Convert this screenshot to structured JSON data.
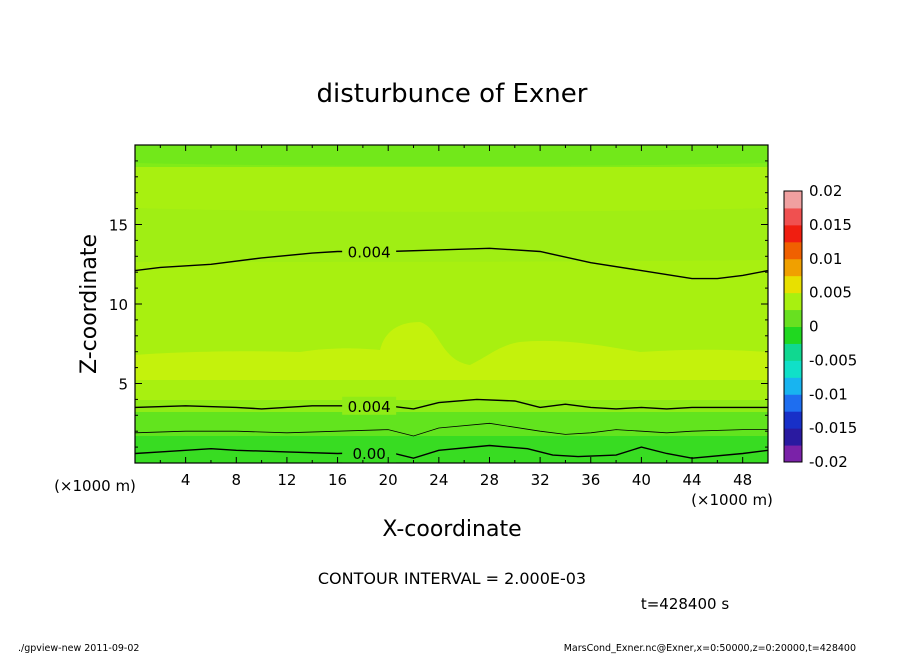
{
  "chart_data": {
    "type": "heatmap",
    "title": "disturbunce of Exner",
    "xlabel": "X-coordinate",
    "ylabel": "Z-coordinate",
    "x_unit": "(×1000 m)",
    "xlim": [
      0,
      50
    ],
    "ylim": [
      0,
      20
    ],
    "x_ticks": [
      "4",
      "8",
      "12",
      "16",
      "20",
      "24",
      "28",
      "32",
      "36",
      "40",
      "44",
      "48"
    ],
    "y_ticks": [
      "5",
      "10",
      "15"
    ],
    "colorbar": {
      "labels": [
        "0.02",
        "0.015",
        "0.01",
        "0.005",
        "0",
        "-0.005",
        "-0.01",
        "-0.015",
        "-0.02"
      ],
      "range": [
        -0.02,
        0.02
      ],
      "colors": [
        "#7a22a8",
        "#2a1aa0",
        "#1830c8",
        "#1e6ef0",
        "#18b4f0",
        "#10e0c8",
        "#10d890",
        "#20d820",
        "#68e020",
        "#a8f010",
        "#e8e000",
        "#f0a000",
        "#f06000",
        "#f01e10",
        "#f05050",
        "#f0a0a0"
      ]
    },
    "contours": [
      {
        "label": "0.004",
        "points": [
          [
            0,
            12.1
          ],
          [
            2,
            12.3
          ],
          [
            6,
            12.5
          ],
          [
            10,
            12.9
          ],
          [
            14,
            13.2
          ],
          [
            16,
            13.3
          ],
          [
            20,
            13.3
          ],
          [
            24,
            13.4
          ],
          [
            28,
            13.5
          ],
          [
            32,
            13.3
          ],
          [
            36,
            12.6
          ],
          [
            40,
            12.1
          ],
          [
            44,
            11.6
          ],
          [
            46,
            11.6
          ],
          [
            48,
            11.8
          ],
          [
            50,
            12.1
          ]
        ]
      },
      {
        "label": "0.004",
        "points": [
          [
            0,
            3.5
          ],
          [
            4,
            3.6
          ],
          [
            8,
            3.5
          ],
          [
            10,
            3.4
          ],
          [
            14,
            3.6
          ],
          [
            18,
            3.6
          ],
          [
            20,
            3.6
          ],
          [
            22,
            3.4
          ],
          [
            24,
            3.8
          ],
          [
            27,
            4.0
          ],
          [
            30,
            3.9
          ],
          [
            32,
            3.5
          ],
          [
            34,
            3.7
          ],
          [
            36,
            3.5
          ],
          [
            38,
            3.4
          ],
          [
            40,
            3.5
          ],
          [
            42,
            3.4
          ],
          [
            44,
            3.5
          ],
          [
            48,
            3.5
          ],
          [
            50,
            3.5
          ]
        ]
      },
      {
        "label": "",
        "points": [
          [
            0,
            1.9
          ],
          [
            4,
            2.0
          ],
          [
            8,
            2.0
          ],
          [
            12,
            1.9
          ],
          [
            16,
            2.0
          ],
          [
            20,
            2.1
          ],
          [
            22,
            1.7
          ],
          [
            24,
            2.2
          ],
          [
            28,
            2.5
          ],
          [
            32,
            2.0
          ],
          [
            34,
            1.8
          ],
          [
            36,
            1.9
          ],
          [
            38,
            2.1
          ],
          [
            40,
            2.0
          ],
          [
            42,
            1.9
          ],
          [
            44,
            2.0
          ],
          [
            48,
            2.1
          ],
          [
            50,
            2.1
          ]
        ]
      },
      {
        "label": "0.00",
        "points": [
          [
            0,
            0.6
          ],
          [
            2,
            0.7
          ],
          [
            6,
            0.9
          ],
          [
            8,
            0.8
          ],
          [
            12,
            0.7
          ],
          [
            16,
            0.6
          ],
          [
            20,
            0.7
          ],
          [
            22,
            0.3
          ],
          [
            24,
            0.8
          ],
          [
            28,
            1.1
          ],
          [
            31,
            0.9
          ],
          [
            33,
            0.5
          ],
          [
            35,
            0.4
          ],
          [
            38,
            0.5
          ],
          [
            40,
            1.0
          ],
          [
            42,
            0.6
          ],
          [
            44,
            0.3
          ],
          [
            48,
            0.6
          ],
          [
            50,
            0.8
          ]
        ]
      }
    ],
    "contour_interval": "CONTOUR INTERVAL = 2.000E-03",
    "time_label": "t=428400 s"
  },
  "footer": {
    "left": "./gpview-new  2011-09-02",
    "right": "MarsCond_Exner.nc@Exner,x=0:50000,z=0:20000,t=428400"
  }
}
